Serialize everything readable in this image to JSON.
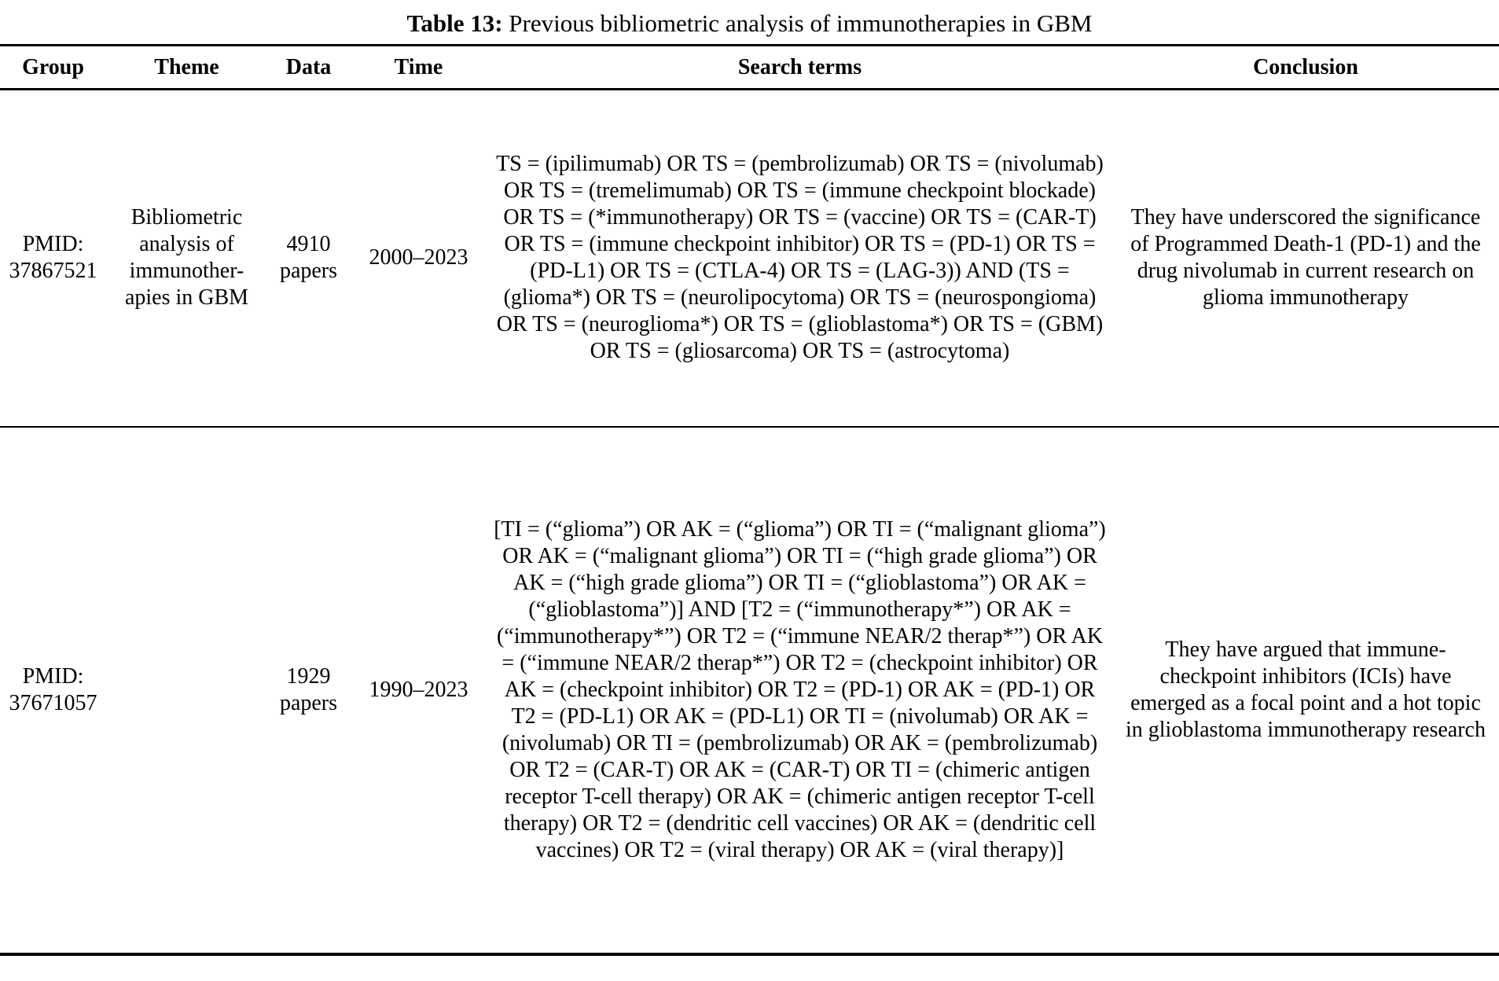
{
  "caption": {
    "label": "Table 13:",
    "text": " Previous bibliometric analysis of immunotherapies in GBM"
  },
  "table": {
    "columns": [
      "Group",
      "Theme",
      "Data",
      "Time",
      "Search terms",
      "Conclusion"
    ],
    "rows": [
      {
        "group": "PMID: 37867521",
        "theme": "Bibliometric analysis of immunother- apies in GBM",
        "data": "4910 papers",
        "time": "2000–2023",
        "search_terms": "TS = (ipilimumab) OR TS = (pembrolizumab) OR TS = (nivolumab) OR TS = (tremelimumab) OR TS = (immune checkpoint blockade) OR TS = (*immunotherapy) OR TS = (vaccine) OR TS = (CAR-T) OR TS = (immune checkpoint inhibitor) OR TS = (PD-1) OR TS = (PD-L1) OR TS = (CTLA-4) OR TS = (LAG-3)) AND (TS = (glioma*) OR TS = (neurolipocytoma) OR TS = (neurospongioma) OR TS = (neuroglioma*) OR TS = (glioblastoma*) OR TS = (GBM) OR TS = (gliosarcoma) OR TS = (astrocytoma)",
        "conclusion": "They have underscored the significance of Programmed Death-1 (PD-1) and the drug nivolumab in current research on glioma immunotherapy"
      },
      {
        "group": "PMID: 37671057",
        "theme": "",
        "data": "1929 papers",
        "time": "1990–2023",
        "search_terms": "[TI = (“glioma”) OR AK = (“glioma”) OR TI = (“malignant glioma”) OR AK = (“malignant glioma”) OR TI = (“high grade glioma”) OR AK = (“high grade glioma”) OR TI = (“glioblastoma”) OR AK = (“glioblastoma”)] AND [T2 = (“immunotherapy*”) OR AK = (“immunotherapy*”) OR T2 = (“immune NEAR/2 therap*”) OR AK = (“immune NEAR/2 therap*”) OR T2 = (checkpoint inhibitor) OR AK = (checkpoint inhibitor) OR T2 = (PD-1) OR AK = (PD-1) OR T2 = (PD-L1) OR AK = (PD-L1) OR TI = (nivolumab) OR AK = (nivolumab) OR TI = (pembrolizumab) OR AK = (pembrolizumab) OR T2 = (CAR-T) OR AK = (CAR-T) OR TI = (chimeric antigen receptor T-cell therapy) OR AK = (chimeric antigen receptor T-cell therapy) OR T2 = (dendritic cell vaccines) OR AK = (dendritic cell vaccines) OR T2 = (viral therapy) OR AK = (viral therapy)]",
        "conclusion": "They have argued that immune-checkpoint inhibitors (ICIs) have emerged as a focal point and a hot topic in glioblastoma immunotherapy research"
      }
    ]
  }
}
